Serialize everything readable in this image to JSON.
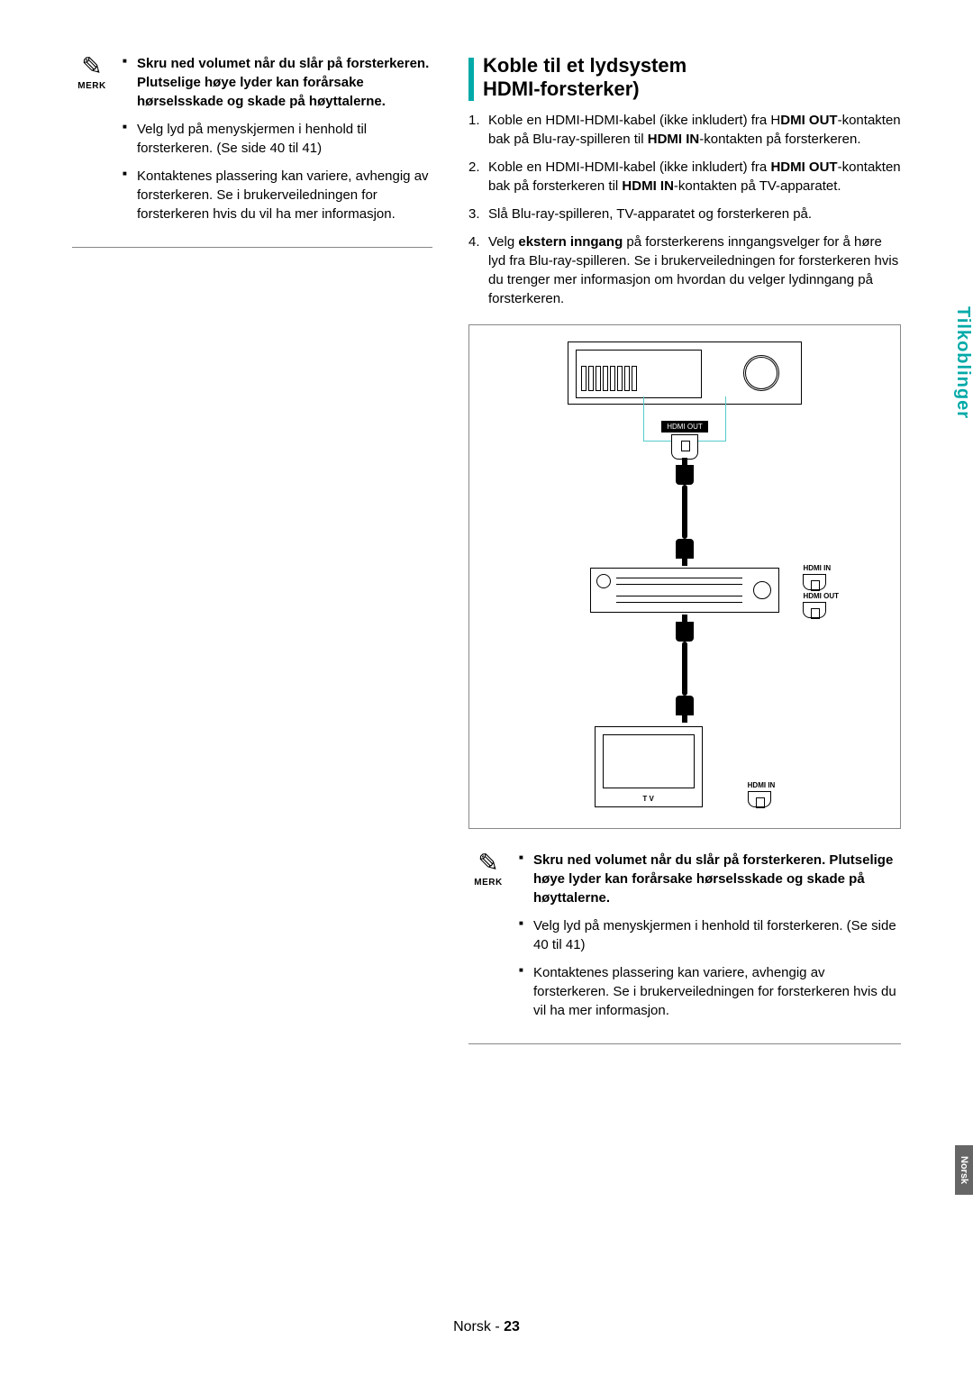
{
  "colors": {
    "accent": "#00aaa8",
    "text": "#000000",
    "border": "#888888",
    "lang_tab_bg": "#666666"
  },
  "left_note": {
    "icon_label": "MERK",
    "items": [
      {
        "bold": true,
        "text": "Skru ned volumet når du slår på forsterkeren. Plutselige høye lyder kan forårsake hørselsskade og skade på høyttalerne."
      },
      {
        "bold": false,
        "text": "Velg lyd på menyskjermen i henhold til forsterkeren. (Se side 40 til 41)"
      },
      {
        "bold": false,
        "text": "Kontaktenes plassering kan variere, avhengig av forsterkeren. Se i brukerveiledningen for forsterkeren hvis du vil ha mer informasjon."
      }
    ]
  },
  "section": {
    "title_line1": "Koble til et lydsystem",
    "title_line2": "HDMI-forsterker)",
    "steps": [
      {
        "n": "1.",
        "html": "Koble en HDMI-HDMI-kabel (ikke inkludert) fra H<b>DMI OUT</b>-kontakten bak på Blu-ray-spilleren til <b>HDMI IN</b>-kontakten på forsterkeren."
      },
      {
        "n": "2.",
        "html": "Koble en HDMI-HDMI-kabel (ikke inkludert) fra <b>HDMI OUT</b>-kontakten bak på forsterkeren til <b>HDMI IN</b>-kontakten på TV-apparatet."
      },
      {
        "n": "3.",
        "html": "Slå Blu-ray-spilleren, TV-apparatet og forsterkeren på."
      },
      {
        "n": "4.",
        "html": "Velg <b>ekstern inngang</b> på forsterkerens inngangsvelger for å høre lyd fra Blu-ray-spilleren. Se i brukerveiledningen for forsterkeren hvis du trenger mer informasjon om hvordan du velger lydinngang på forsterkeren."
      }
    ]
  },
  "diagram": {
    "port_top": "HDMI OUT",
    "hdmi_in": "HDMI IN",
    "hdmi_out": "HDMI OUT",
    "tv": "T V",
    "hdmi_in2": "HDMI IN"
  },
  "right_note": {
    "icon_label": "MERK",
    "items": [
      {
        "bold": true,
        "text": "Skru ned volumet når du slår på forsterkeren. Plutselige høye lyder kan forårsake hørselsskade og skade på høyttalerne."
      },
      {
        "bold": false,
        "text": "Velg lyd på menyskjermen i henhold til forsterkeren. (Se side 40 til 41)"
      },
      {
        "bold": false,
        "text": "Kontaktenes plassering kan variere, avhengig av forsterkeren.\nSe i brukerveiledningen for forsterkeren hvis du vil ha mer informasjon."
      }
    ]
  },
  "side_tab": "Tilkoblinger",
  "lang_tab": "Norsk",
  "footer": {
    "lang": "Norsk",
    "sep": " - ",
    "page": "23"
  }
}
